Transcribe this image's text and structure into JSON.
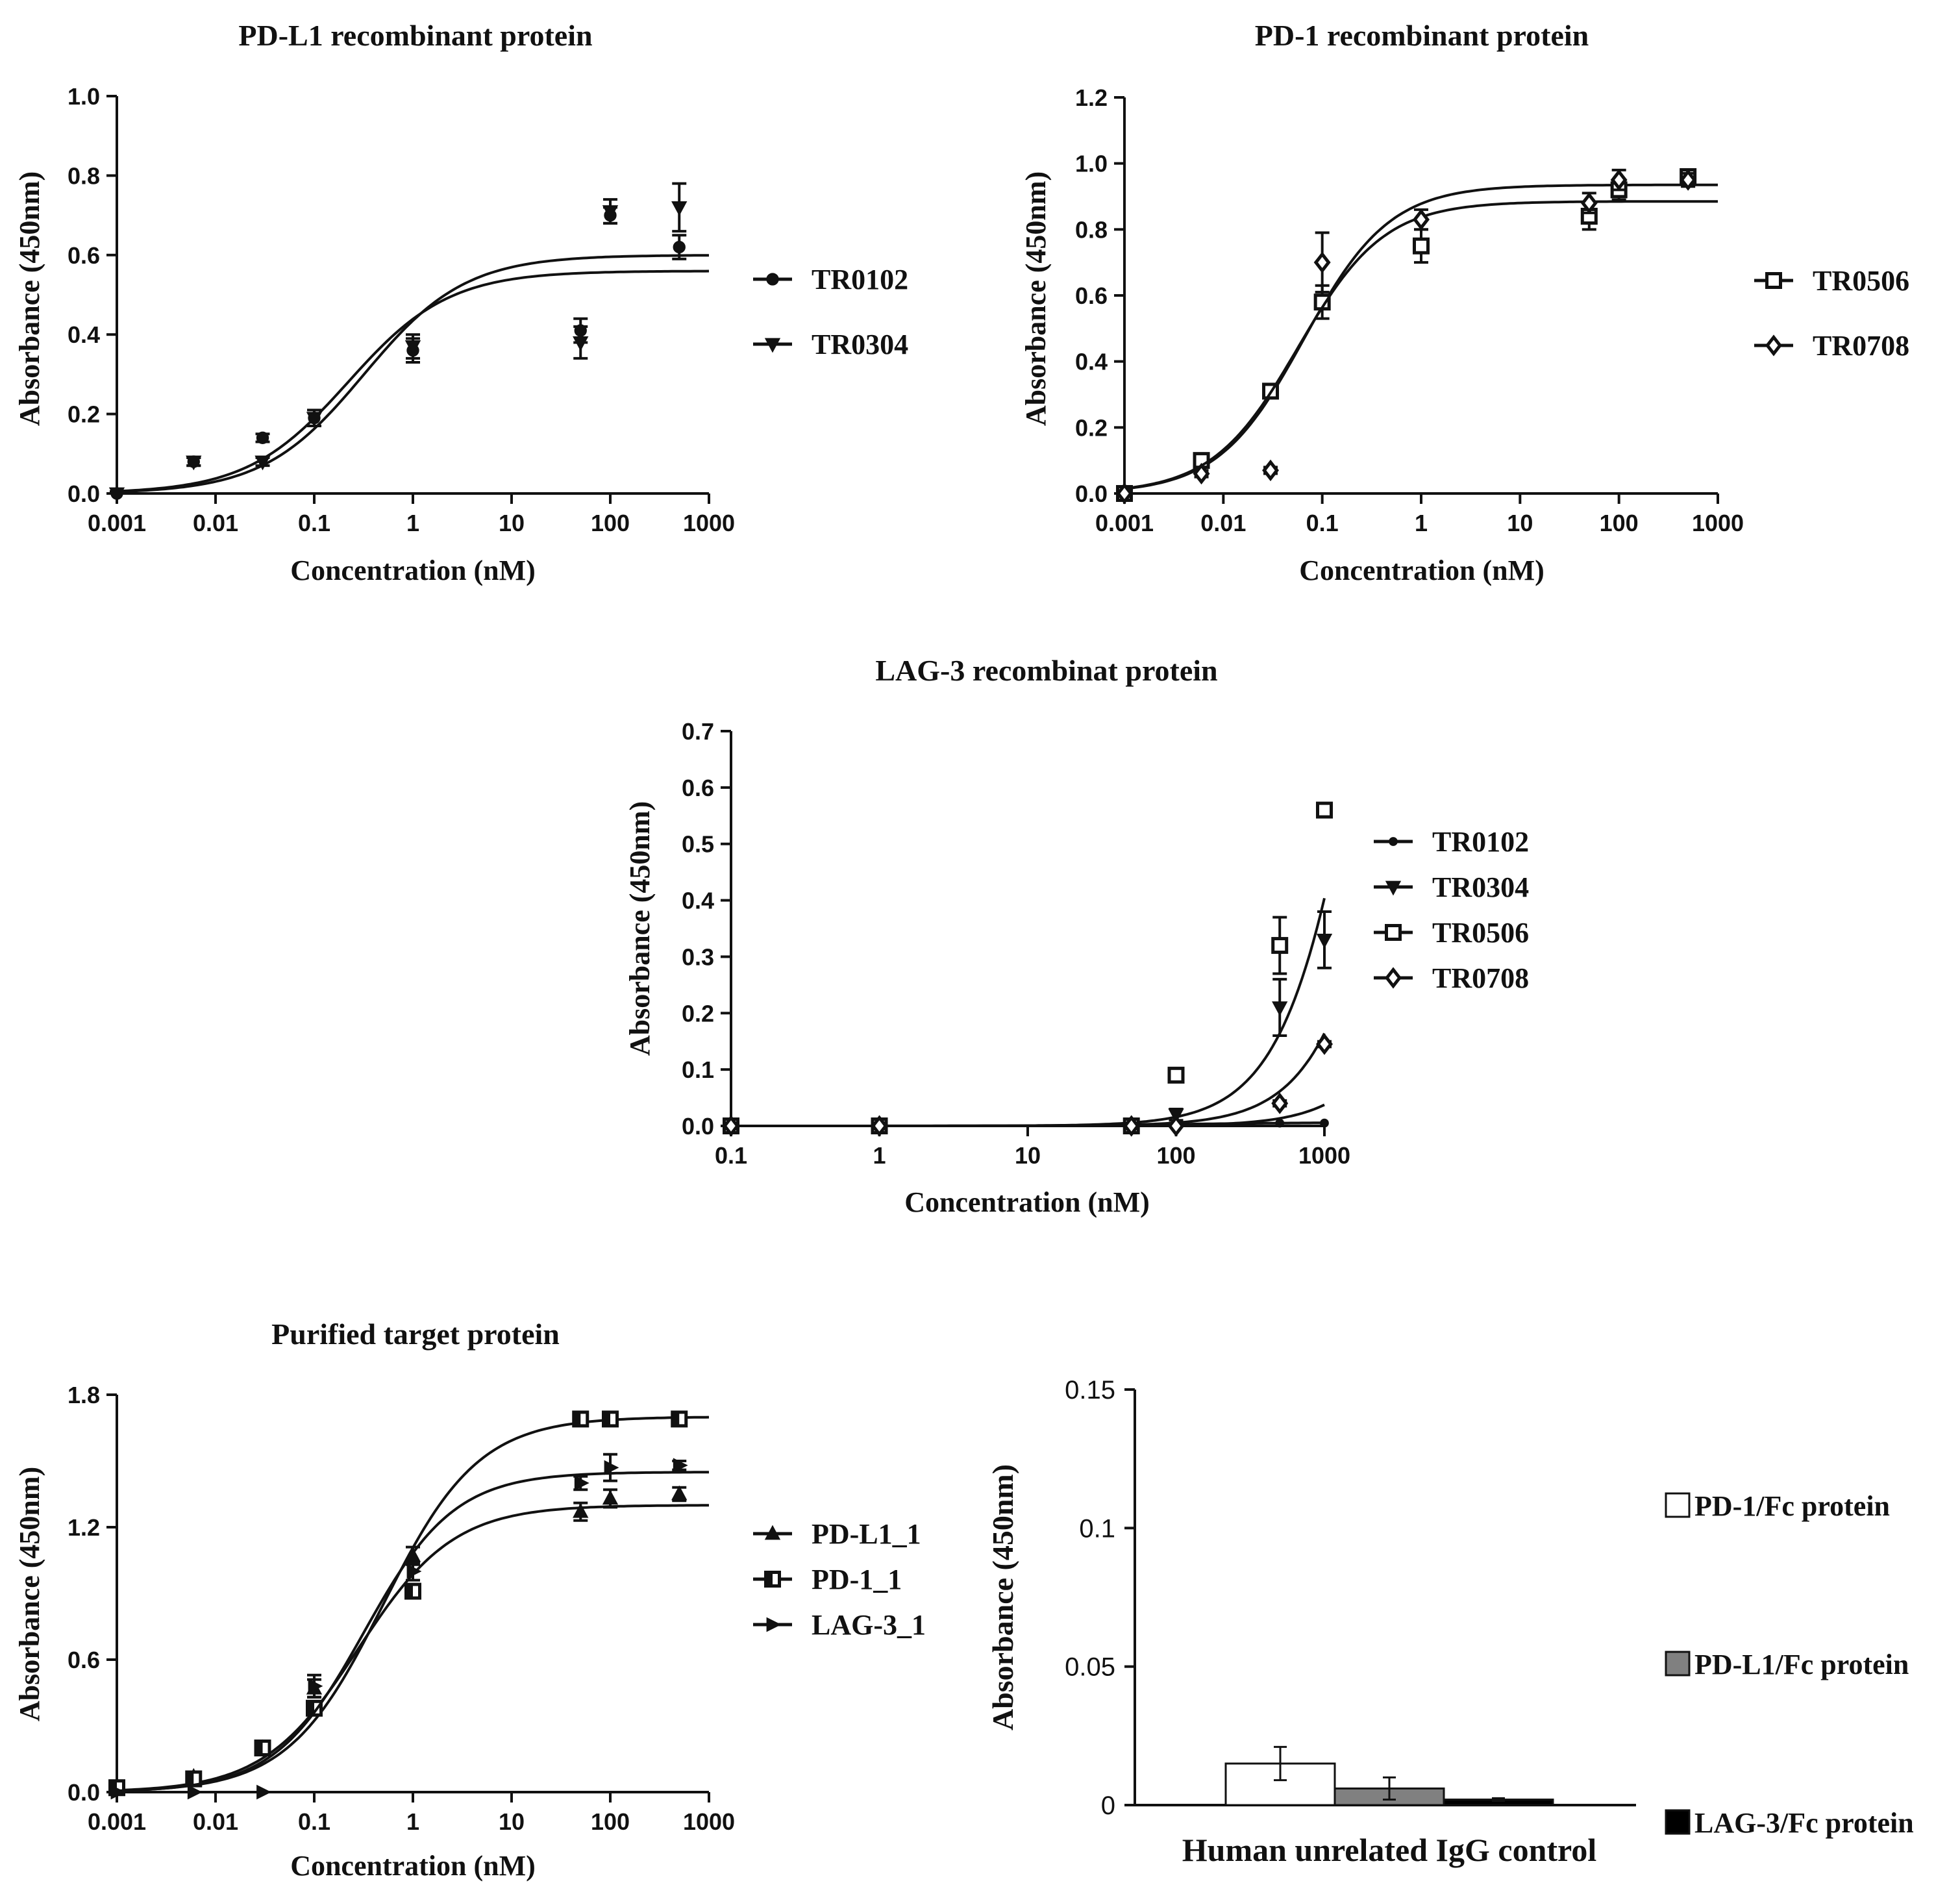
{
  "chart_data": [
    {
      "id": "pdl1",
      "type": "scatter",
      "title": "PD-L1 recombinant protein",
      "xlabel": "Concentration (nM)",
      "ylabel": "Absorbance (450nm)",
      "xscale": "log",
      "xlim": [
        0.001,
        1000
      ],
      "ylim": [
        0,
        1.0
      ],
      "xticks": [
        "0.001",
        "0.01",
        "0.1",
        "1",
        "10",
        "100",
        "1000"
      ],
      "yticks": [
        "0.0",
        "0.2",
        "0.4",
        "0.6",
        "0.8",
        "1.0"
      ],
      "legend_position": "right",
      "series": [
        {
          "name": "TR0102",
          "marker": "circle",
          "x": [
            0.001,
            0.006,
            0.03,
            0.1,
            1,
            50,
            100,
            500
          ],
          "y": [
            0.0,
            0.08,
            0.14,
            0.19,
            0.36,
            0.41,
            0.7,
            0.62
          ],
          "err": [
            0.005,
            0.01,
            0.01,
            0.02,
            0.03,
            0.03,
            0.02,
            0.03
          ],
          "curve": {
            "bottom": 0.0,
            "top": 0.56,
            "ec50": 0.22,
            "hill": 0.85
          }
        },
        {
          "name": "TR0304",
          "marker": "triangle-down",
          "x": [
            0.001,
            0.006,
            0.03,
            0.1,
            1,
            50,
            100,
            500
          ],
          "y": [
            0.0,
            0.08,
            0.08,
            0.19,
            0.37,
            0.38,
            0.71,
            0.72
          ],
          "err": [
            0.005,
            0.01,
            0.01,
            0.02,
            0.03,
            0.04,
            0.03,
            0.06
          ],
          "curve": {
            "bottom": 0.0,
            "top": 0.6,
            "ec50": 0.32,
            "hill": 0.85
          }
        }
      ]
    },
    {
      "id": "pd1",
      "type": "scatter",
      "title": "PD-1 recombinant protein",
      "xlabel": "Concentration (nM)",
      "ylabel": "Absorbance (450nm)",
      "xscale": "log",
      "xlim": [
        0.001,
        1000
      ],
      "ylim": [
        0,
        1.2
      ],
      "xticks": [
        "0.001",
        "0.01",
        "0.1",
        "1",
        "10",
        "100",
        "1000"
      ],
      "yticks": [
        "0.0",
        "0.2",
        "0.4",
        "0.6",
        "0.8",
        "1.0",
        "1.2"
      ],
      "legend_position": "right",
      "series": [
        {
          "name": "TR0506",
          "marker": "square-open",
          "x": [
            0.001,
            0.006,
            0.03,
            0.1,
            1,
            50,
            100,
            500
          ],
          "y": [
            0.0,
            0.1,
            0.31,
            0.58,
            0.75,
            0.84,
            0.92,
            0.96
          ],
          "err": [
            0.005,
            0.01,
            0.02,
            0.05,
            0.05,
            0.04,
            0.03,
            0.02
          ],
          "curve": {
            "bottom": 0.0,
            "top": 0.935,
            "ec50": 0.065,
            "hill": 1.0
          }
        },
        {
          "name": "TR0708",
          "marker": "diamond-open",
          "x": [
            0.001,
            0.006,
            0.03,
            0.1,
            1,
            50,
            100,
            500
          ],
          "y": [
            0.0,
            0.06,
            0.07,
            0.7,
            0.83,
            0.88,
            0.95,
            0.95
          ],
          "err": [
            0.005,
            0.01,
            0.01,
            0.09,
            0.03,
            0.03,
            0.03,
            0.02
          ],
          "curve": {
            "bottom": 0.0,
            "top": 0.885,
            "ec50": 0.057,
            "hill": 1.0
          }
        }
      ]
    },
    {
      "id": "lag3",
      "type": "scatter",
      "title": "LAG-3 recombinat protein",
      "xlabel": "Concentration (nM)",
      "ylabel": "Absorbance (450nm)",
      "xscale": "log",
      "xlim": [
        0.1,
        1000
      ],
      "ylim": [
        0,
        0.7
      ],
      "xticks": [
        "0.1",
        "1",
        "10",
        "100",
        "1000"
      ],
      "yticks": [
        "0.0",
        "0.1",
        "0.2",
        "0.3",
        "0.4",
        "0.5",
        "0.6",
        "0.7"
      ],
      "legend_position": "right",
      "series": [
        {
          "name": "TR0102",
          "marker": "circle-small",
          "x": [
            0.1,
            1,
            50,
            100,
            500,
            1000
          ],
          "y": [
            0.0,
            0.0,
            0.0,
            0.0,
            0.005,
            0.005
          ],
          "err": [
            0,
            0,
            0,
            0,
            0,
            0
          ],
          "curve": {
            "bottom": 0.0,
            "top": 0.006,
            "ec50": 100,
            "hill": 1.0
          }
        },
        {
          "name": "TR0304",
          "marker": "triangle-down",
          "x": [
            0.1,
            1,
            50,
            100,
            500,
            1000
          ],
          "y": [
            0.0,
            0.0,
            0.0,
            0.02,
            0.21,
            0.33
          ],
          "err": [
            0,
            0,
            0,
            0.01,
            0.05,
            0.05
          ],
          "curve": {
            "bottom": 0.0,
            "top": 2.0,
            "ec50": 5000,
            "hill": 1.5
          }
        },
        {
          "name": "TR0506",
          "marker": "square-open",
          "x": [
            0.1,
            1,
            50,
            100,
            500,
            1000
          ],
          "y": [
            0.0,
            0.0,
            0.0,
            0.09,
            0.32,
            0.56
          ],
          "err": [
            0,
            0,
            0,
            0.01,
            0.05,
            0.01
          ],
          "curve": {
            "bottom": 0.0,
            "top": 2.0,
            "ec50": 2500,
            "hill": 1.5
          }
        },
        {
          "name": "TR0708",
          "marker": "diamond-open",
          "x": [
            0.1,
            1,
            50,
            100,
            500,
            1000
          ],
          "y": [
            0.0,
            0.0,
            0.0,
            0.0,
            0.04,
            0.145
          ],
          "err": [
            0,
            0,
            0,
            0,
            0.005,
            0.005
          ],
          "curve": {
            "bottom": 0.0,
            "top": 2.0,
            "ec50": 14000,
            "hill": 1.5
          }
        }
      ]
    },
    {
      "id": "purified",
      "type": "scatter",
      "title": "Purified target protein",
      "xlabel": "Concentration (nM)",
      "ylabel": "Absorbance (450nm)",
      "xscale": "log",
      "xlim": [
        0.001,
        1000
      ],
      "ylim": [
        0,
        1.8
      ],
      "xticks": [
        "0.001",
        "0.01",
        "0.1",
        "1",
        "10",
        "100",
        "1000"
      ],
      "yticks": [
        "0.0",
        "0.6",
        "1.2",
        "1.8"
      ],
      "legend_position": "right",
      "series": [
        {
          "name": "PD-L1_1",
          "marker": "triangle-up",
          "x": [
            0.001,
            0.006,
            0.03,
            0.1,
            1,
            50,
            100,
            500
          ],
          "y": [
            0.02,
            0.07,
            0.2,
            0.47,
            1.07,
            1.27,
            1.33,
            1.35
          ],
          "err": [
            0.01,
            0.01,
            0.02,
            0.04,
            0.04,
            0.04,
            0.04,
            0.03
          ],
          "curve": {
            "bottom": 0.0,
            "top": 1.3,
            "ec50": 0.28,
            "hill": 0.9
          }
        },
        {
          "name": "PD-1_1",
          "marker": "square-half",
          "x": [
            0.001,
            0.006,
            0.03,
            0.1,
            1,
            50,
            100,
            500
          ],
          "y": [
            0.02,
            0.06,
            0.2,
            0.38,
            0.91,
            1.69,
            1.69,
            1.69
          ],
          "err": [
            0.01,
            0.01,
            0.02,
            0.03,
            0.03,
            0.02,
            0.02,
            0.03
          ],
          "curve": {
            "bottom": 0.0,
            "top": 1.7,
            "ec50": 0.5,
            "hill": 0.9
          }
        },
        {
          "name": "LAG-3_1",
          "marker": "triangle-right",
          "x": [
            0.001,
            0.006,
            0.03,
            0.1,
            1,
            50,
            100,
            500
          ],
          "y": [
            0.0,
            0.0,
            0.0,
            0.48,
            1.0,
            1.4,
            1.47,
            1.48
          ],
          "err": [
            0.0,
            0.0,
            0.0,
            0.05,
            0.04,
            0.03,
            0.06,
            0.02
          ],
          "curve": {
            "bottom": 0.0,
            "top": 1.45,
            "ec50": 0.32,
            "hill": 0.95
          }
        }
      ]
    },
    {
      "id": "igg",
      "type": "bar",
      "title": "",
      "xlabel": "Human unrelated IgG control",
      "ylabel": "Absorbance (450nm)",
      "ylim": [
        0,
        0.15
      ],
      "yticks": [
        "0",
        "0.05",
        "0.1",
        "0.15"
      ],
      "legend_position": "right",
      "series": [
        {
          "name": "PD-1/Fc protein",
          "color": "#ffffff",
          "value": 0.015,
          "err": 0.006
        },
        {
          "name": "PD-L1/Fc protein",
          "color": "#808080",
          "value": 0.006,
          "err": 0.004
        },
        {
          "name": "LAG-3/Fc protein",
          "color": "#000000",
          "value": 0.002,
          "err": 0.0005
        }
      ]
    }
  ]
}
